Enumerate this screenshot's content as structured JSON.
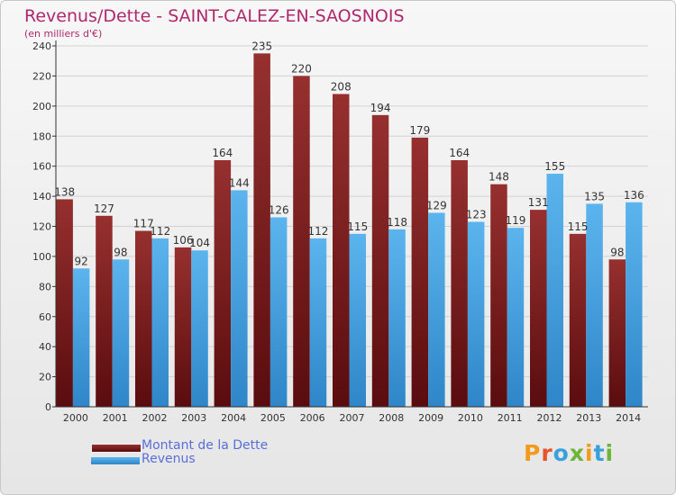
{
  "header": {
    "title": "Revenus/Dette - SAINT-CALEZ-EN-SAOSNOIS",
    "subtitle": "(en milliers d'€)"
  },
  "legend": {
    "items": [
      {
        "label": "Montant de la Dette",
        "color": "#7a1f22"
      },
      {
        "label": "Revenus",
        "color": "#4aa8e8"
      }
    ]
  },
  "logo": {
    "text": "Proxiti",
    "letters": [
      {
        "char": "P",
        "color": "#f19a1c"
      },
      {
        "char": "r",
        "color": "#e8542a"
      },
      {
        "char": "o",
        "color": "#3aa0dc"
      },
      {
        "char": "x",
        "color": "#6fb43a"
      },
      {
        "char": "i",
        "color": "#f19a1c"
      },
      {
        "char": "t",
        "color": "#3aa0dc"
      },
      {
        "char": "i",
        "color": "#6fb43a"
      }
    ]
  },
  "chart_data": {
    "type": "bar",
    "title": "Revenus/Dette - SAINT-CALEZ-EN-SAOSNOIS",
    "ylabel": "(en milliers d'€)",
    "categories": [
      "2000",
      "2001",
      "2002",
      "2003",
      "2004",
      "2005",
      "2006",
      "2007",
      "2008",
      "2009",
      "2010",
      "2011",
      "2012",
      "2013",
      "2014"
    ],
    "series": [
      {
        "name": "Montant de la Dette",
        "color": "#7a1f22",
        "values": [
          138,
          127,
          117,
          106,
          164,
          235,
          220,
          208,
          194,
          179,
          164,
          148,
          131,
          115,
          98
        ]
      },
      {
        "name": "Revenus",
        "color": "#4aa8e8",
        "values": [
          92,
          98,
          112,
          104,
          144,
          126,
          112,
          115,
          118,
          129,
          123,
          119,
          155,
          135,
          136
        ]
      }
    ],
    "ylim": [
      0,
      240
    ],
    "yticks": [
      0,
      20,
      40,
      60,
      80,
      100,
      120,
      140,
      160,
      180,
      200,
      220,
      240
    ],
    "grid": true
  }
}
